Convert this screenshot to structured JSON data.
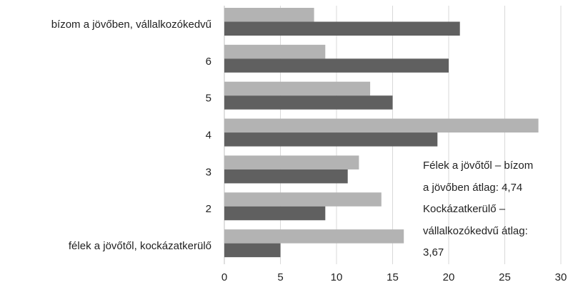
{
  "chart_data": {
    "type": "bar",
    "orientation": "horizontal",
    "categories": [
      "bízom a jövőben, vállalkozókedvű",
      "6",
      "5",
      "4",
      "3",
      "2",
      "félek a jövőtől, kockázatkerülő"
    ],
    "series": [
      {
        "values": [
          8,
          9,
          13,
          28,
          12,
          14,
          16
        ],
        "color": "#b3b3b3"
      },
      {
        "values": [
          21,
          20,
          15,
          19,
          11,
          9,
          5
        ],
        "color": "#606060"
      }
    ],
    "xlim": [
      0,
      30
    ],
    "xticks": [
      0,
      5,
      10,
      15,
      20,
      25,
      30
    ],
    "grid": true,
    "annotation": [
      "Félek a jövőtől – bízom",
      "a jövőben átlag: 4,74",
      "Kockázatkerülő –",
      "vállalkozókedvű átlag:",
      "3,67"
    ]
  }
}
